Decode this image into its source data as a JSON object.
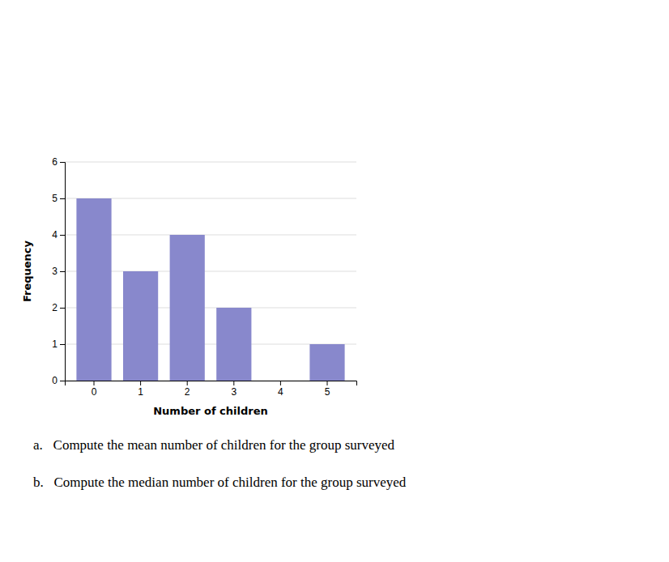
{
  "chart_data": {
    "type": "bar",
    "categories": [
      0,
      1,
      2,
      3,
      4,
      5
    ],
    "values": [
      5,
      3,
      4,
      2,
      0,
      1
    ],
    "color": "#8888cc",
    "xlabel": "Number of children",
    "ylabel": "Frequency",
    "ylim": [
      0,
      6
    ],
    "yticks": [
      0,
      1,
      2,
      3,
      4,
      5,
      6
    ],
    "grid": true,
    "annotations": [
      "a.   Compute the mean number of children for the group surveyed",
      "b.   Compute the median number of children for the group surveyed"
    ]
  }
}
